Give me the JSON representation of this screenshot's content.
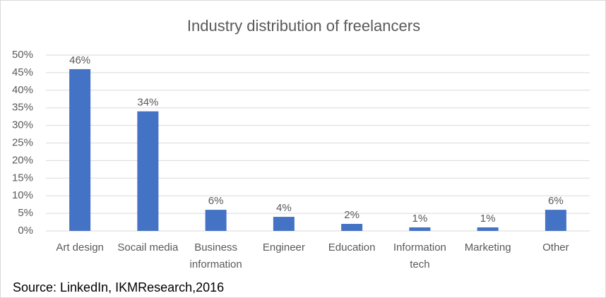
{
  "chart_data": {
    "type": "bar",
    "title": "Industry distribution of freelancers",
    "categories": [
      "Art design",
      "Socail media",
      "Business information",
      "Engineer",
      "Education",
      "Information tech",
      "Marketing",
      "Other"
    ],
    "values": [
      46,
      34,
      6,
      4,
      2,
      1,
      1,
      6
    ],
    "value_labels": [
      "46%",
      "34%",
      "6%",
      "4%",
      "2%",
      "1%",
      "1%",
      "6%"
    ],
    "color": "#4472c4",
    "ylim": [
      0,
      50
    ],
    "yticks": [
      {
        "value": 0,
        "label": "0%"
      },
      {
        "value": 5,
        "label": "5%"
      },
      {
        "value": 10,
        "label": "10%"
      },
      {
        "value": 15,
        "label": "15%"
      },
      {
        "value": 20,
        "label": "20%"
      },
      {
        "value": 25,
        "label": "25%"
      },
      {
        "value": 30,
        "label": "30%"
      },
      {
        "value": 35,
        "label": "35%"
      },
      {
        "value": 40,
        "label": "40%"
      },
      {
        "value": 45,
        "label": "45%"
      },
      {
        "value": 50,
        "label": "50%"
      }
    ],
    "grid": true,
    "source": "Source: LinkedIn, IKMResearch,2016"
  }
}
